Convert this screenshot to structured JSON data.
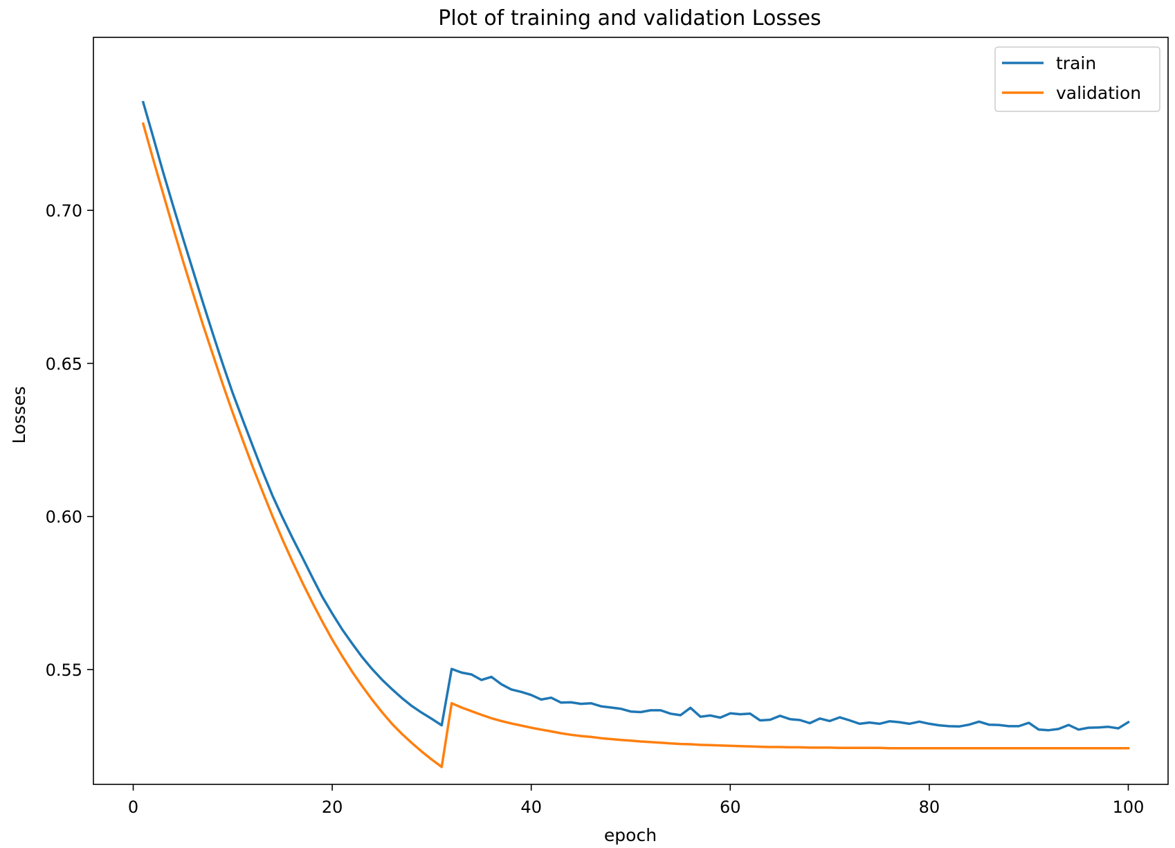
{
  "chart_data": {
    "type": "line",
    "title": "Plot of training and validation Losses",
    "xlabel": "epoch",
    "ylabel": "Losses",
    "xlim": [
      -4,
      104
    ],
    "ylim": [
      0.5125,
      0.7565
    ],
    "xticks": [
      0,
      20,
      40,
      60,
      80,
      100
    ],
    "yticks": [
      0.55,
      0.6,
      0.65,
      0.7
    ],
    "xtick_labels": [
      "0",
      "20",
      "40",
      "60",
      "80",
      "100"
    ],
    "ytick_labels": [
      "0.55",
      "0.60",
      "0.65",
      "0.70"
    ],
    "grid": false,
    "legend_position": "top-right",
    "x": [
      1,
      2,
      3,
      4,
      5,
      6,
      7,
      8,
      9,
      10,
      11,
      12,
      13,
      14,
      15,
      16,
      17,
      18,
      19,
      20,
      21,
      22,
      23,
      24,
      25,
      26,
      27,
      28,
      29,
      30,
      31,
      32,
      33,
      34,
      35,
      36,
      37,
      38,
      39,
      40,
      41,
      42,
      43,
      44,
      45,
      46,
      47,
      48,
      49,
      50,
      51,
      52,
      53,
      54,
      55,
      56,
      57,
      58,
      59,
      60,
      61,
      62,
      63,
      64,
      65,
      66,
      67,
      68,
      69,
      70,
      71,
      72,
      73,
      74,
      75,
      76,
      77,
      78,
      79,
      80,
      81,
      82,
      83,
      84,
      85,
      86,
      87,
      88,
      89,
      90,
      91,
      92,
      93,
      94,
      95,
      96,
      97,
      98,
      99,
      100
    ],
    "series": [
      {
        "name": "train",
        "color": "#1f77b4",
        "values": [
          0.7353,
          0.724,
          0.7125,
          0.7016,
          0.6909,
          0.6804,
          0.6699,
          0.6597,
          0.6498,
          0.6403,
          0.6316,
          0.6231,
          0.6147,
          0.6068,
          0.5997,
          0.593,
          0.5866,
          0.5801,
          0.5738,
          0.5683,
          0.5631,
          0.5585,
          0.5541,
          0.5502,
          0.5467,
          0.5436,
          0.5407,
          0.5381,
          0.5359,
          0.5339,
          0.5318,
          0.5502,
          0.549,
          0.5484,
          0.5466,
          0.5476,
          0.5452,
          0.5435,
          0.5427,
          0.5417,
          0.5402,
          0.5408,
          0.5392,
          0.5393,
          0.5388,
          0.539,
          0.538,
          0.5376,
          0.5372,
          0.5363,
          0.5361,
          0.5367,
          0.5367,
          0.5356,
          0.5351,
          0.5375,
          0.5346,
          0.535,
          0.5343,
          0.5357,
          0.5354,
          0.5356,
          0.5334,
          0.5336,
          0.5349,
          0.5338,
          0.5335,
          0.5325,
          0.534,
          0.5332,
          0.5344,
          0.5334,
          0.5323,
          0.5327,
          0.5323,
          0.5331,
          0.5328,
          0.5323,
          0.533,
          0.5323,
          0.5318,
          0.5315,
          0.5314,
          0.532,
          0.533,
          0.532,
          0.5319,
          0.5315,
          0.5315,
          0.5326,
          0.5304,
          0.5302,
          0.5306,
          0.5319,
          0.5304,
          0.531,
          0.5311,
          0.5313,
          0.5308,
          0.5328
        ]
      },
      {
        "name": "validation",
        "color": "#ff7f0e",
        "values": [
          0.7283,
          0.7167,
          0.7055,
          0.6944,
          0.6835,
          0.673,
          0.6627,
          0.6529,
          0.6432,
          0.6339,
          0.625,
          0.6163,
          0.6081,
          0.6001,
          0.5925,
          0.5853,
          0.5784,
          0.5719,
          0.5657,
          0.5598,
          0.5544,
          0.5493,
          0.5446,
          0.5402,
          0.5361,
          0.5323,
          0.529,
          0.526,
          0.5232,
          0.5206,
          0.5182,
          0.539,
          0.5376,
          0.5364,
          0.5352,
          0.5341,
          0.5332,
          0.5324,
          0.5317,
          0.531,
          0.5304,
          0.5298,
          0.5292,
          0.5287,
          0.5283,
          0.528,
          0.5276,
          0.5273,
          0.527,
          0.5268,
          0.5265,
          0.5263,
          0.5261,
          0.5259,
          0.5257,
          0.5256,
          0.5254,
          0.5253,
          0.5252,
          0.5251,
          0.525,
          0.5249,
          0.5248,
          0.5247,
          0.5247,
          0.5246,
          0.5246,
          0.5245,
          0.5245,
          0.5245,
          0.5244,
          0.5244,
          0.5244,
          0.5244,
          0.5244,
          0.5243,
          0.5243,
          0.5243,
          0.5243,
          0.5243,
          0.5243,
          0.5243,
          0.5243,
          0.5243,
          0.5243,
          0.5243,
          0.5243,
          0.5243,
          0.5243,
          0.5243,
          0.5243,
          0.5243,
          0.5243,
          0.5243,
          0.5243,
          0.5243,
          0.5243,
          0.5243,
          0.5243,
          0.5243
        ]
      }
    ]
  }
}
